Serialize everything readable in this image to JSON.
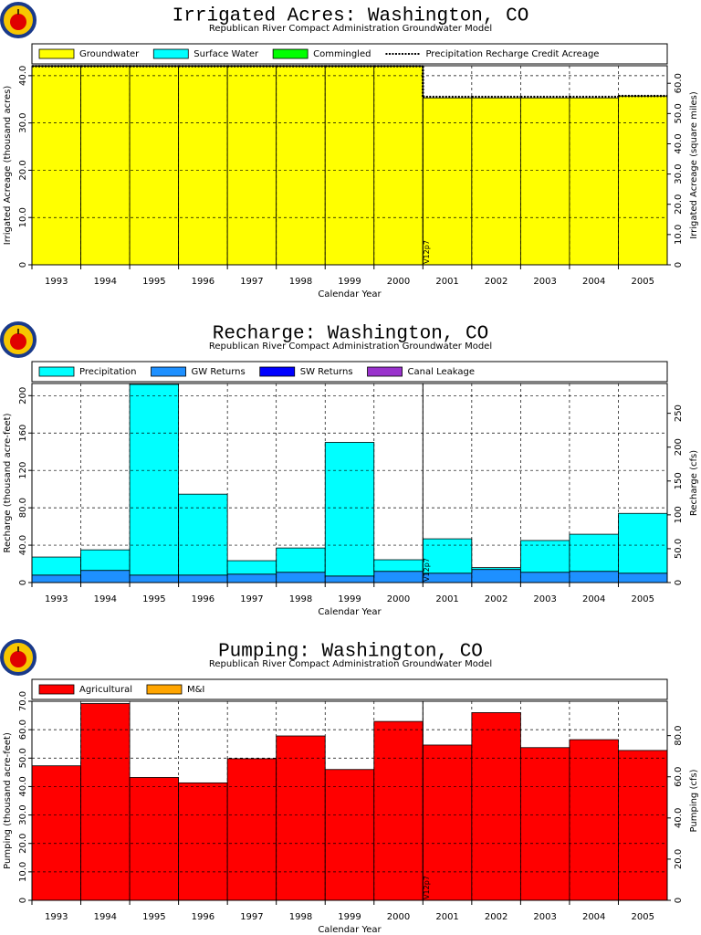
{
  "chart_data": [
    {
      "type": "bar",
      "title": "Irrigated Acres: Washington, CO",
      "subtitle": "Republican River Compact Administration Groundwater Model",
      "ylabel": "Irrigated Acreage (thousand acres)",
      "y2label": "Irrigated Acreage (square miles)",
      "xlabel": "Calendar Year",
      "annotation": "V12p7",
      "legend": "top",
      "grid": true,
      "categories": [
        "1993",
        "1994",
        "1995",
        "1996",
        "1997",
        "1998",
        "1999",
        "2000",
        "2001",
        "2002",
        "2003",
        "2004",
        "2005"
      ],
      "series": [
        {
          "name": "Groundwater",
          "color": "#ffff00",
          "values": [
            42,
            42,
            42,
            42,
            42,
            42,
            42,
            42,
            35.3,
            35.3,
            35.3,
            35.3,
            35.7
          ]
        },
        {
          "name": "Surface Water",
          "color": "#00ffff",
          "values": [
            0,
            0,
            0,
            0,
            0,
            0,
            0,
            0,
            0,
            0,
            0,
            0,
            0
          ]
        },
        {
          "name": "Commingled",
          "color": "#00ff00",
          "values": [
            0,
            0,
            0,
            0,
            0,
            0,
            0,
            0,
            0,
            0,
            0,
            0,
            0
          ]
        },
        {
          "name": "Precipitation Recharge Credit Acreage",
          "color": "#000000",
          "style": "dotted-line",
          "values": [
            42,
            42,
            42,
            42,
            42,
            42,
            42,
            42,
            35.5,
            35.5,
            35.5,
            35.5,
            35.7
          ]
        }
      ],
      "ylim": [
        0,
        42.1
      ],
      "yticks": [
        0,
        {
          "value": 10,
          "label": "10.0"
        },
        {
          "value": 20,
          "label": "20.0"
        },
        {
          "value": 30,
          "label": "30.0"
        },
        {
          "value": 40,
          "label": "40.0"
        }
      ],
      "y2lim": [
        0,
        65.8
      ],
      "y2ticks": [
        0,
        {
          "value": 10,
          "label": "10.0"
        },
        {
          "value": 20,
          "label": "20.0"
        },
        {
          "value": 30,
          "label": "30.0"
        },
        {
          "value": 40,
          "label": "40.0"
        },
        {
          "value": 50,
          "label": "50.0"
        },
        {
          "value": 60,
          "label": "60.0"
        }
      ]
    },
    {
      "type": "bar",
      "title": "Recharge: Washington, CO",
      "subtitle": "Republican River Compact Administration Groundwater Model",
      "ylabel": "Recharge (thousand acre-feet)",
      "y2label": "Recharge (cfs)",
      "xlabel": "Calendar Year",
      "annotation": "V12p7",
      "legend": "top",
      "grid": true,
      "categories": [
        "1993",
        "1994",
        "1995",
        "1996",
        "1997",
        "1998",
        "1999",
        "2000",
        "2001",
        "2002",
        "2003",
        "2004",
        "2005"
      ],
      "series": [
        {
          "name": "GW Returns",
          "color": "#1e90ff",
          "values": [
            8,
            13,
            8,
            8,
            9,
            11,
            7,
            12,
            10,
            14,
            11,
            12,
            10
          ]
        },
        {
          "name": "SW Returns",
          "color": "#0000ff",
          "values": [
            0,
            0,
            0,
            0,
            0,
            0,
            0,
            0,
            0,
            0,
            0,
            0,
            0
          ]
        },
        {
          "name": "Canal Leakage",
          "color": "#9932cc",
          "values": [
            0,
            0,
            0,
            0,
            0,
            0,
            0,
            0,
            0,
            0,
            0,
            0,
            0
          ]
        },
        {
          "name": "Precipitation",
          "color": "#00ffff",
          "values": [
            19.3,
            22,
            204,
            86.6,
            14.4,
            26,
            143,
            12.4,
            36.8,
            2,
            34,
            39.7,
            64
          ]
        }
      ],
      "legend_order": [
        "Precipitation",
        "GW Returns",
        "SW Returns",
        "Canal Leakage"
      ],
      "ylim": [
        0,
        213
      ],
      "yticks": [
        0,
        {
          "value": 40,
          "label": "40.0"
        },
        {
          "value": 80,
          "label": "80.0"
        },
        120,
        160,
        200
      ],
      "y2lim": [
        0,
        294
      ],
      "y2ticks": [
        0,
        {
          "value": 50,
          "label": "50.0"
        },
        100,
        150,
        200,
        250
      ]
    },
    {
      "type": "bar",
      "title": "Pumping: Washington, CO",
      "subtitle": "Republican River Compact Administration Groundwater Model",
      "ylabel": "Pumping (thousand acre-feet)",
      "y2label": "Pumping (cfs)",
      "xlabel": "Calendar Year",
      "annotation": "V12p7",
      "legend": "top",
      "grid": true,
      "categories": [
        "1993",
        "1994",
        "1995",
        "1996",
        "1997",
        "1998",
        "1999",
        "2000",
        "2001",
        "2002",
        "2003",
        "2004",
        "2005"
      ],
      "series": [
        {
          "name": "Agricultural",
          "color": "#ff0000",
          "values": [
            47.3,
            69.2,
            43.2,
            41.3,
            49.8,
            57.8,
            46,
            62.9,
            54.6,
            66,
            53.7,
            56.5,
            52.7
          ]
        },
        {
          "name": "M&I",
          "color": "#ffa500",
          "values": [
            0,
            0,
            0,
            0,
            0,
            0,
            0,
            0,
            0,
            0,
            0,
            0,
            0
          ]
        }
      ],
      "ylim": [
        0,
        70
      ],
      "yticks": [
        0,
        {
          "value": 10,
          "label": "10.0"
        },
        {
          "value": 20,
          "label": "20.0"
        },
        {
          "value": 30,
          "label": "30.0"
        },
        {
          "value": 40,
          "label": "40.0"
        },
        {
          "value": 50,
          "label": "50.0"
        },
        {
          "value": 60,
          "label": "60.0"
        },
        {
          "value": 70,
          "label": "70.0"
        }
      ],
      "y2lim": [
        0,
        96.7
      ],
      "y2ticks": [
        0,
        {
          "value": 20,
          "label": "20.0"
        },
        {
          "value": 40,
          "label": "40.0"
        },
        {
          "value": 60,
          "label": "60.0"
        },
        {
          "value": 80,
          "label": "80.0"
        }
      ]
    }
  ]
}
